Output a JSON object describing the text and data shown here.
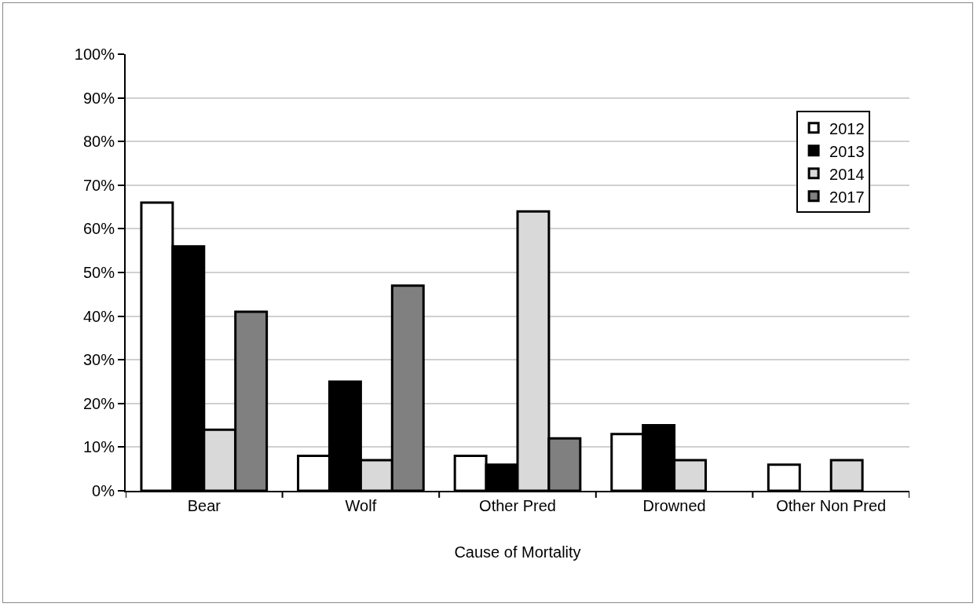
{
  "chart_data": {
    "type": "bar",
    "xlabel": "Cause of Mortality",
    "categories": [
      "Bear",
      "Wolf",
      "Other Pred",
      "Drowned",
      "Other Non Pred"
    ],
    "series": [
      {
        "name": "2012",
        "color": "#ffffff",
        "values": [
          66,
          8,
          8,
          13,
          6
        ]
      },
      {
        "name": "2013",
        "color": "#000000",
        "values": [
          56,
          25,
          6,
          15,
          null
        ]
      },
      {
        "name": "2014",
        "color": "#d9d9d9",
        "values": [
          14,
          7,
          64,
          7,
          7
        ]
      },
      {
        "name": "2017",
        "color": "#808080",
        "values": [
          41,
          47,
          12,
          null,
          null
        ]
      }
    ],
    "ylim": [
      0,
      100
    ],
    "yticks": [
      {
        "value": 0,
        "label": "0%"
      },
      {
        "value": 10,
        "label": "10%"
      },
      {
        "value": 20,
        "label": "20%"
      },
      {
        "value": 30,
        "label": "30%"
      },
      {
        "value": 40,
        "label": "40%"
      },
      {
        "value": 50,
        "label": "50%"
      },
      {
        "value": 60,
        "label": "60%"
      },
      {
        "value": 70,
        "label": "70%"
      },
      {
        "value": 80,
        "label": "80%"
      },
      {
        "value": 90,
        "label": "90%"
      },
      {
        "value": 100,
        "label": "100%"
      }
    ],
    "grid": "y",
    "legend": "top right"
  }
}
